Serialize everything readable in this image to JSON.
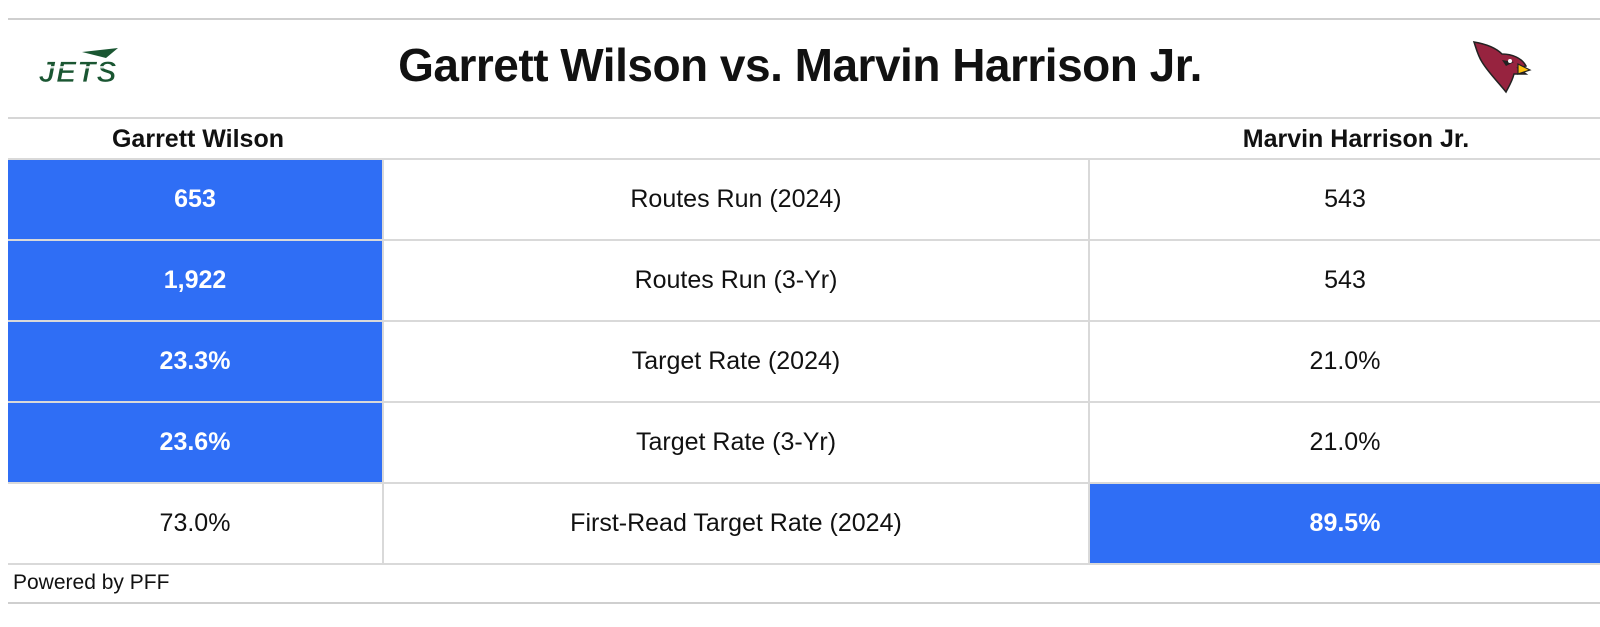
{
  "title": "Garrett Wilson vs. Marvin Harrison Jr.",
  "logos": {
    "left": {
      "icon": "jets-logo",
      "text": "JETS",
      "color": "#1a5632"
    },
    "right": {
      "icon": "cardinals-logo",
      "color": "#97233f"
    }
  },
  "columns": {
    "left": "Garrett Wilson",
    "right": "Marvin Harrison Jr."
  },
  "highlight_color": "#2f6ef5",
  "rows": [
    {
      "left": "653",
      "metric": "Routes Run (2024)",
      "right": "543",
      "highlight": "left"
    },
    {
      "left": "1,922",
      "metric": "Routes Run (3-Yr)",
      "right": "543",
      "highlight": "left"
    },
    {
      "left": "23.3%",
      "metric": "Target Rate (2024)",
      "right": "21.0%",
      "highlight": "left"
    },
    {
      "left": "23.6%",
      "metric": "Target Rate (3-Yr)",
      "right": "21.0%",
      "highlight": "left"
    },
    {
      "left": "73.0%",
      "metric": "First-Read Target Rate (2024)",
      "right": "89.5%",
      "highlight": "right"
    }
  ],
  "footer": "Powered by PFF"
}
